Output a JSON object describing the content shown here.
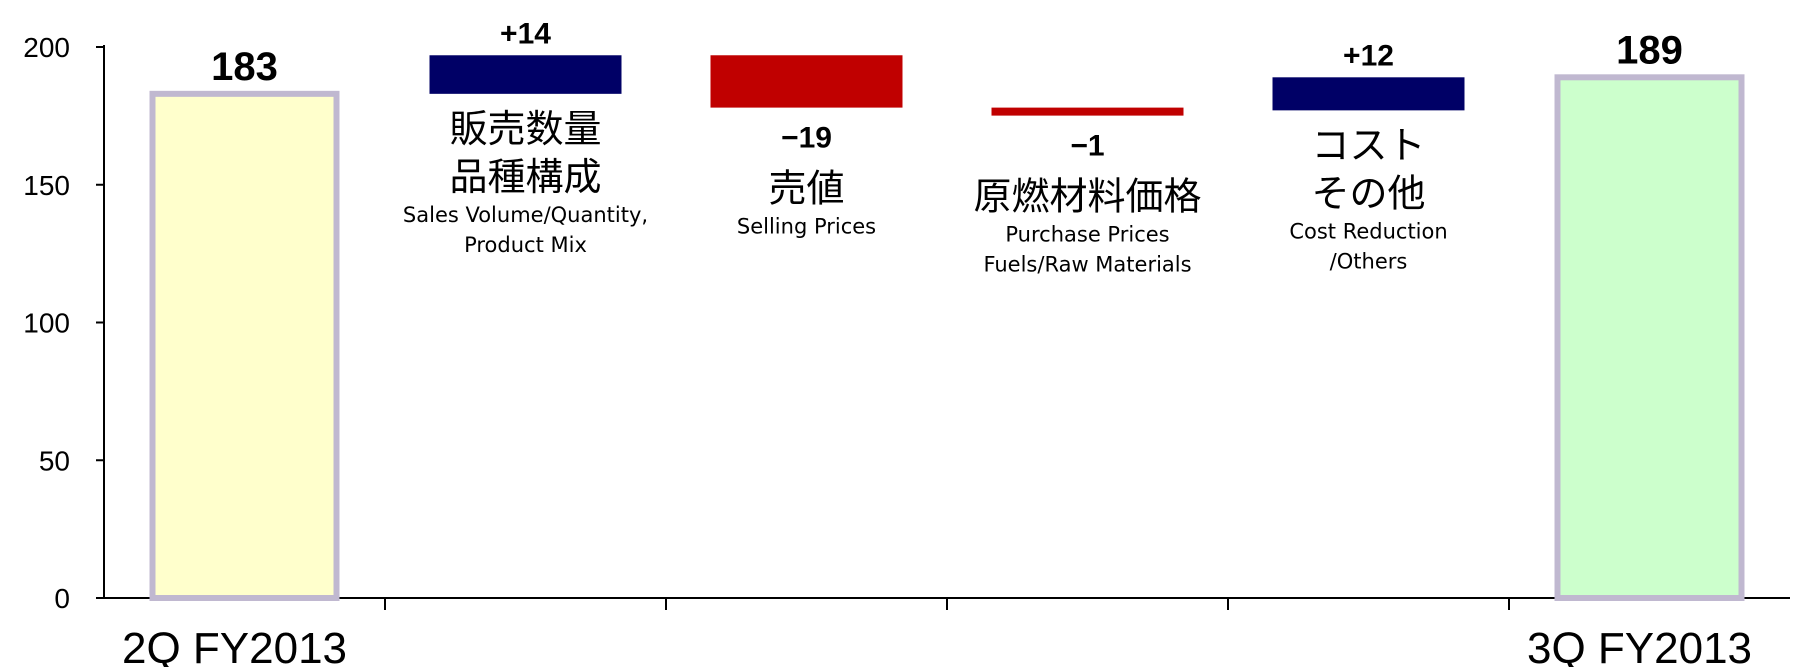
{
  "chart_data": {
    "type": "bar",
    "subtype": "waterfall",
    "ylim": [
      0,
      200
    ],
    "yticks": [
      "0",
      "50",
      "100",
      "150",
      "200"
    ],
    "grid": false,
    "steps": [
      {
        "kind": "total",
        "value": 183,
        "label": "183",
        "category": "2Q FY2013",
        "color": "#ffffcc",
        "border": "#c0b8d0"
      },
      {
        "kind": "delta",
        "value": 14,
        "label": "+14",
        "jp": [
          "販売数量",
          "品種構成"
        ],
        "en": [
          "Sales Volume/Quantity,",
          "Product Mix"
        ],
        "color": "#000066"
      },
      {
        "kind": "delta",
        "value": -19,
        "label": "−19",
        "jp": [
          "売値"
        ],
        "en": [
          "Selling Prices"
        ],
        "color": "#c00000"
      },
      {
        "kind": "delta",
        "value": -1,
        "label": "−1",
        "jp": [
          "原燃材料価格"
        ],
        "en": [
          "Purchase Prices",
          "Fuels/Raw Materials"
        ],
        "color": "#c00000"
      },
      {
        "kind": "delta",
        "value": 12,
        "label": "+12",
        "jp": [
          "コスト",
          "その他"
        ],
        "en": [
          "Cost Reduction",
          "/Others"
        ],
        "color": "#000066"
      },
      {
        "kind": "total",
        "value": 189,
        "label": "189",
        "category": "3Q FY2013",
        "color": "#ccffcc",
        "border": "#c0b8d0"
      }
    ]
  }
}
